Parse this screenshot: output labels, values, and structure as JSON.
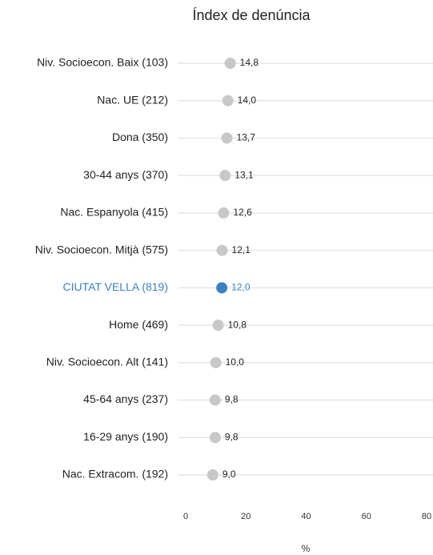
{
  "chart_data": {
    "type": "dot",
    "title": "Índex de denúncia",
    "x_label": "%",
    "categories": [
      "Niv. Socioecon. Baix (103)",
      "Nac. UE (212)",
      "Dona (350)",
      "30-44 anys (370)",
      "Nac. Espanyola (415)",
      "Niv. Socioecon. Mitjà (575)",
      "CIUTAT VELLA (819)",
      "Home (469)",
      "Niv. Socioecon. Alt (141)",
      "45-64 anys (237)",
      "16-29 anys (190)",
      "Nac. Extracom. (192)"
    ],
    "values": [
      14.8,
      14.0,
      13.7,
      13.1,
      12.6,
      12.1,
      12.0,
      10.8,
      10.0,
      9.8,
      9.8,
      9.0
    ],
    "value_labels": [
      "14,8",
      "14,0",
      "13,7",
      "13,1",
      "12,6",
      "12,1",
      "12,0",
      "10,8",
      "10,0",
      "9,8",
      "9,8",
      "9,0"
    ],
    "color": "#c8c8c8",
    "highlight_index": 6,
    "highlight_color": "#3a82bf",
    "xlim": [
      0,
      80
    ],
    "xticks": [
      0,
      20,
      40,
      60,
      80
    ]
  }
}
